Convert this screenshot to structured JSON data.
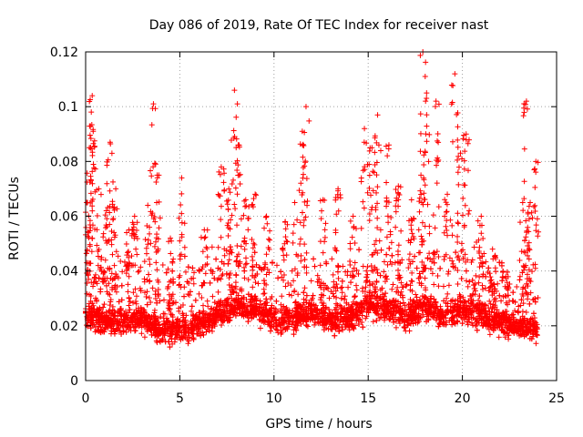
{
  "chart_data": {
    "type": "scatter",
    "title": "Day 086 of 2019, Rate Of TEC Index for receiver nast",
    "xlabel": "GPS time / hours",
    "ylabel": "ROTI / TECUs",
    "xlim": [
      0,
      25
    ],
    "ylim": [
      0,
      0.12
    ],
    "xticks": [
      0,
      5,
      10,
      15,
      20,
      25
    ],
    "xtick_labels": [
      "0",
      "5",
      "10",
      "15",
      "20",
      "25"
    ],
    "yticks": [
      0,
      0.02,
      0.04,
      0.06,
      0.08,
      0.1,
      0.12
    ],
    "ytick_labels": [
      "0",
      "0.02",
      "0.04",
      "0.06",
      "0.08",
      "0.1",
      "0.12"
    ],
    "grid": true,
    "marker": "+",
    "color": "#ff0000",
    "data_x_range": [
      0,
      24
    ],
    "series": [
      {
        "name": "ROTI",
        "baseline_envelope": [
          [
            0,
            0.025
          ],
          [
            1,
            0.022
          ],
          [
            2,
            0.021
          ],
          [
            3,
            0.022
          ],
          [
            4,
            0.018
          ],
          [
            5,
            0.019
          ],
          [
            6,
            0.02
          ],
          [
            7,
            0.024
          ],
          [
            8,
            0.028
          ],
          [
            9,
            0.026
          ],
          [
            10,
            0.022
          ],
          [
            11,
            0.023
          ],
          [
            12,
            0.025
          ],
          [
            13,
            0.022
          ],
          [
            14,
            0.023
          ],
          [
            15,
            0.028
          ],
          [
            16,
            0.026
          ],
          [
            17,
            0.023
          ],
          [
            18,
            0.027
          ],
          [
            19,
            0.024
          ],
          [
            20,
            0.026
          ],
          [
            21,
            0.024
          ],
          [
            22,
            0.021
          ],
          [
            23,
            0.02
          ],
          [
            24,
            0.019
          ]
        ],
        "peaks": [
          [
            0.1,
            0.065
          ],
          [
            0.2,
            0.085
          ],
          [
            0.3,
            0.098
          ],
          [
            0.35,
            0.104
          ],
          [
            0.7,
            0.07
          ],
          [
            1.1,
            0.062
          ],
          [
            1.3,
            0.087
          ],
          [
            1.6,
            0.07
          ],
          [
            2.3,
            0.055
          ],
          [
            2.6,
            0.06
          ],
          [
            3.3,
            0.064
          ],
          [
            3.6,
            0.101
          ],
          [
            3.8,
            0.075
          ],
          [
            4.5,
            0.052
          ],
          [
            5.1,
            0.074
          ],
          [
            6.3,
            0.055
          ],
          [
            7.2,
            0.078
          ],
          [
            7.6,
            0.07
          ],
          [
            7.9,
            0.106
          ],
          [
            8.1,
            0.086
          ],
          [
            8.5,
            0.066
          ],
          [
            9.0,
            0.068
          ],
          [
            9.6,
            0.06
          ],
          [
            10.6,
            0.058
          ],
          [
            11.1,
            0.065
          ],
          [
            11.5,
            0.091
          ],
          [
            11.7,
            0.1
          ],
          [
            12.6,
            0.066
          ],
          [
            13.4,
            0.07
          ],
          [
            14.2,
            0.06
          ],
          [
            14.8,
            0.092
          ],
          [
            15.2,
            0.085
          ],
          [
            15.5,
            0.097
          ],
          [
            16.1,
            0.086
          ],
          [
            16.6,
            0.071
          ],
          [
            17.3,
            0.066
          ],
          [
            17.8,
            0.075
          ],
          [
            17.9,
            0.12
          ],
          [
            18.1,
            0.105
          ],
          [
            18.6,
            0.102
          ],
          [
            19.2,
            0.068
          ],
          [
            19.6,
            0.112
          ],
          [
            19.9,
            0.083
          ],
          [
            20.2,
            0.09
          ],
          [
            21.0,
            0.06
          ],
          [
            21.6,
            0.048
          ],
          [
            22.3,
            0.038
          ],
          [
            23.2,
            0.065
          ],
          [
            23.4,
            0.102
          ],
          [
            23.6,
            0.065
          ],
          [
            23.9,
            0.08
          ]
        ]
      }
    ]
  }
}
